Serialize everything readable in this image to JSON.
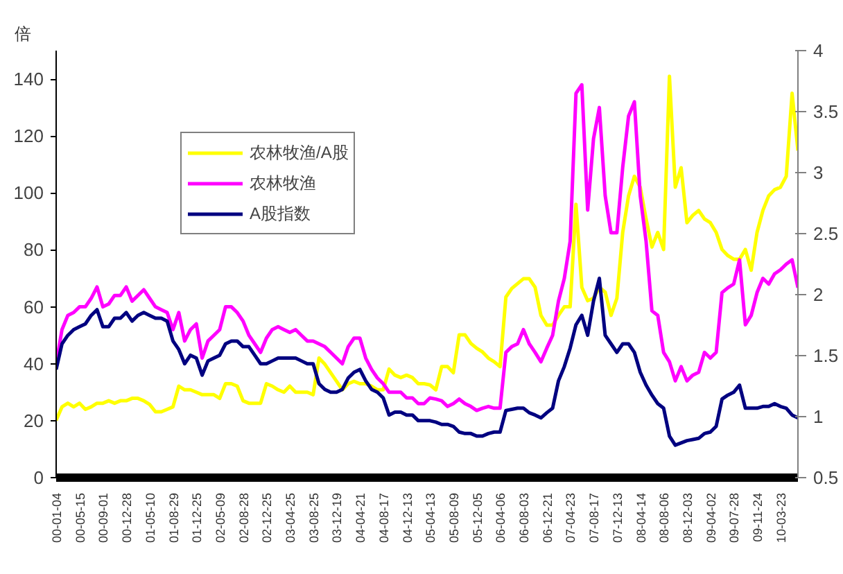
{
  "chart_data": {
    "type": "line",
    "ylabel": "倍",
    "categories": [
      "00-01-04",
      null,
      null,
      null,
      "00-05-15",
      null,
      null,
      null,
      "00-09-01",
      null,
      null,
      null,
      "00-12-28",
      null,
      null,
      null,
      "01-05-10",
      null,
      null,
      null,
      "01-08-29",
      null,
      null,
      null,
      "01-12-25",
      null,
      null,
      null,
      "02-05-09",
      null,
      null,
      null,
      "02-08-28",
      null,
      null,
      null,
      "02-12-25",
      null,
      null,
      null,
      "03-04-25",
      null,
      null,
      null,
      "03-08-25",
      null,
      null,
      null,
      "03-12-19",
      null,
      null,
      null,
      "04-04-21",
      null,
      null,
      null,
      "04-08-17",
      null,
      null,
      null,
      "04-12-13",
      null,
      null,
      null,
      "05-04-13",
      null,
      null,
      null,
      "05-08-09",
      null,
      null,
      null,
      "05-12-05",
      null,
      null,
      null,
      "06-04-06",
      null,
      null,
      null,
      "06-08-03",
      null,
      null,
      null,
      "06-12-21",
      null,
      null,
      null,
      "07-04-23",
      null,
      null,
      null,
      "07-08-17",
      null,
      null,
      null,
      "07-12-13",
      null,
      null,
      null,
      "08-04-14",
      null,
      null,
      null,
      "08-08-06",
      null,
      null,
      null,
      "08-12-03",
      null,
      null,
      null,
      "09-04-02",
      null,
      null,
      null,
      "09-07-28",
      null,
      null,
      null,
      "09-11-24",
      null,
      null,
      null,
      "10-03-23",
      null,
      null,
      null
    ],
    "series": [
      {
        "name": "农林牧渔/A股",
        "color": "#ffff00",
        "axis": "y2",
        "values": [
          0.97,
          1.08,
          1.11,
          1.08,
          1.11,
          1.06,
          1.08,
          1.11,
          1.11,
          1.13,
          1.11,
          1.13,
          1.13,
          1.15,
          1.15,
          1.13,
          1.1,
          1.04,
          1.04,
          1.06,
          1.08,
          1.25,
          1.22,
          1.22,
          1.2,
          1.18,
          1.18,
          1.18,
          1.15,
          1.27,
          1.27,
          1.25,
          1.13,
          1.11,
          1.11,
          1.11,
          1.27,
          1.25,
          1.22,
          1.2,
          1.25,
          1.2,
          1.2,
          1.2,
          1.18,
          1.48,
          1.43,
          1.36,
          1.29,
          1.22,
          1.27,
          1.29,
          1.27,
          1.27,
          1.25,
          1.22,
          1.22,
          1.39,
          1.34,
          1.32,
          1.34,
          1.32,
          1.27,
          1.27,
          1.26,
          1.22,
          1.41,
          1.41,
          1.36,
          1.67,
          1.67,
          1.6,
          1.56,
          1.53,
          1.48,
          1.45,
          1.41,
          1.98,
          2.05,
          2.09,
          2.13,
          2.13,
          2.06,
          1.83,
          1.75,
          1.75,
          1.83,
          1.9,
          1.9,
          2.74,
          2.06,
          1.95,
          1.97,
          2.06,
          2.02,
          1.83,
          1.97,
          2.51,
          2.81,
          2.97,
          2.88,
          2.62,
          2.39,
          2.51,
          2.37,
          3.79,
          2.88,
          3.04,
          2.59,
          2.65,
          2.69,
          2.62,
          2.59,
          2.51,
          2.37,
          2.32,
          2.29,
          2.29,
          2.37,
          2.2,
          2.51,
          2.69,
          2.81,
          2.86,
          2.88,
          2.97,
          3.65,
          3.18
        ]
      },
      {
        "name": "农林牧渔",
        "color": "#ff00ff",
        "values": [
          40,
          52,
          57,
          58,
          60,
          60,
          63,
          67,
          60,
          61,
          64,
          64,
          67,
          62,
          64,
          66,
          63,
          60,
          59,
          58,
          52,
          58,
          48,
          52,
          54,
          42,
          48,
          50,
          52,
          60,
          60,
          58,
          55,
          50,
          47,
          44,
          49,
          52,
          53,
          52,
          51,
          52,
          50,
          48,
          48,
          47,
          46,
          44,
          42,
          40,
          46,
          49,
          49,
          42,
          38,
          35,
          33,
          30,
          30,
          30,
          28,
          28,
          26,
          26,
          28,
          27.6,
          27,
          25,
          26,
          27.6,
          26,
          25,
          23.6,
          24.4,
          25,
          24.4,
          24.4,
          44,
          46,
          47,
          52,
          47,
          44,
          40.7,
          45.5,
          50,
          62,
          70,
          83,
          135,
          138,
          94,
          119,
          130,
          99,
          86,
          86,
          109,
          127,
          132,
          99,
          83,
          58.6,
          57,
          44,
          40.7,
          34,
          39,
          34,
          36,
          37,
          44,
          42,
          44,
          65,
          66.7,
          68,
          76.5,
          53.7,
          57,
          65,
          70,
          68,
          71.6,
          73,
          75,
          76.5,
          66.7
        ]
      },
      {
        "name": "A股指数",
        "color": "#000080",
        "values": [
          38,
          47,
          50,
          52,
          53,
          54,
          57,
          59,
          53,
          53,
          56,
          56,
          58,
          55,
          57,
          58,
          57,
          56,
          56,
          55,
          48,
          45,
          40,
          43,
          42,
          36,
          41,
          42,
          43,
          47,
          48,
          48,
          46,
          46,
          43,
          40,
          40,
          41,
          42,
          42,
          42,
          42,
          41,
          40,
          40,
          33,
          31,
          30,
          30,
          31,
          35,
          37,
          38,
          34,
          31,
          30,
          28,
          22,
          23,
          23,
          22,
          22,
          20,
          20,
          20,
          19.5,
          18.7,
          18.7,
          18,
          16,
          15.5,
          15.5,
          14.6,
          14.6,
          15.5,
          16,
          16,
          23.6,
          24,
          24.4,
          24.4,
          22.8,
          22,
          21,
          22.8,
          24.4,
          34,
          39,
          45.5,
          53.7,
          57,
          50,
          62,
          70,
          50,
          47,
          44,
          47,
          47,
          44,
          37,
          32.5,
          29,
          26,
          24.4,
          14.6,
          11.4,
          12.2,
          13,
          13.4,
          13.8,
          15.5,
          16,
          18,
          27.6,
          29,
          30,
          32.5,
          24.4,
          24.4,
          24.4,
          25,
          25,
          26,
          25,
          24.4,
          22,
          21
        ]
      }
    ],
    "ylim": [
      0,
      150
    ],
    "yticks": [
      0,
      20,
      40,
      60,
      80,
      100,
      120,
      140
    ],
    "y2lim": [
      0.5,
      4
    ],
    "y2ticks": [
      0.5,
      1,
      1.5,
      2,
      2.5,
      3,
      3.5,
      4
    ],
    "grid": false,
    "legend": "top left",
    "line_style": "solid"
  }
}
